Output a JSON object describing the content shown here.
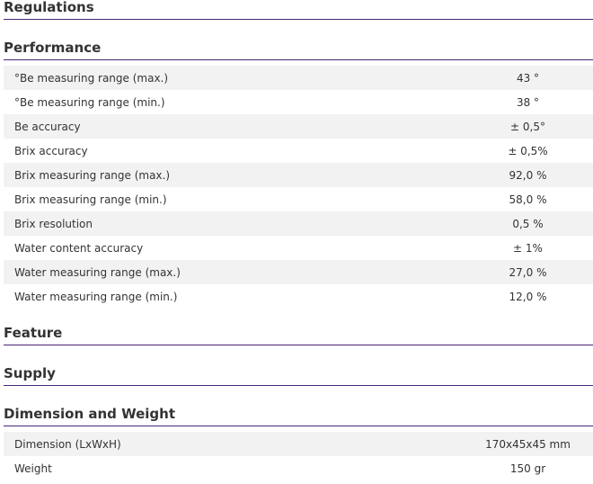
{
  "sections": [
    {
      "title": "Regulations",
      "rows": []
    },
    {
      "title": "Performance",
      "rows": [
        [
          "°Be measuring range (max.)",
          "43 °"
        ],
        [
          "°Be measuring range (min.)",
          "38 °"
        ],
        [
          "Be accuracy",
          "± 0,5°"
        ],
        [
          "Brix accuracy",
          "± 0,5%"
        ],
        [
          "Brix measuring range (max.)",
          "92,0 %"
        ],
        [
          "Brix measuring range (min.)",
          "58,0 %"
        ],
        [
          "Brix resolution",
          "0,5 %"
        ],
        [
          "Water content accuracy",
          "± 1%"
        ],
        [
          "Water measuring range (max.)",
          "27,0 %"
        ],
        [
          "Water measuring range (min.)",
          "12,0 %"
        ]
      ]
    },
    {
      "title": "Feature",
      "rows": []
    },
    {
      "title": "Supply",
      "rows": []
    },
    {
      "title": "Dimension and Weight",
      "rows": [
        [
          "Dimension (LxWxH)",
          "170x45x45 mm"
        ],
        [
          "Weight",
          "150 gr"
        ]
      ]
    }
  ]
}
